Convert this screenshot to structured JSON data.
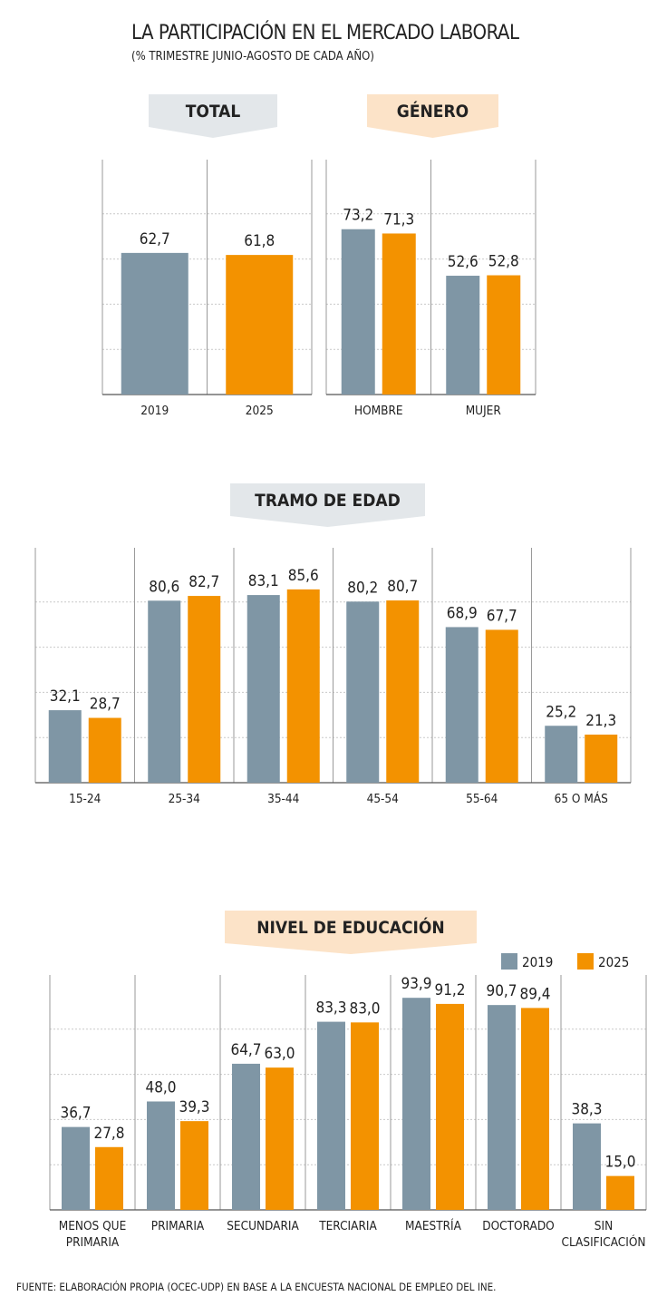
{
  "title": "LA PARTICIPACIÓN EN EL MERCADO LABORAL",
  "subtitle": "(% TRIMESTRE JUNIO-AGOSTO DE CADA AÑO)",
  "source": "FUENTE: ELABORACIÓN PROPIA (OCEC-UDP) EN BASE A LA ENCUESTA NACIONAL DE EMPLEO DEL INE.",
  "colors": {
    "series_2019": "#7f96a5",
    "series_2025": "#f39200",
    "banner_gray": "#e3e7ea",
    "banner_orange": "#fce3c8"
  },
  "legend": {
    "placement": "top-right",
    "items": [
      "2019",
      "2025"
    ]
  },
  "chart_data": [
    {
      "type": "bar",
      "banner": "TOTAL",
      "title": "TOTAL",
      "categories": [
        "2019",
        "2025"
      ],
      "series": [
        {
          "values": [
            62.7,
            61.8
          ],
          "labels": [
            "62,7",
            "61,8"
          ]
        }
      ],
      "ylim": [
        0,
        100
      ],
      "grid": true
    },
    {
      "type": "bar",
      "banner": "GÉNERO",
      "title": "GÉNERO",
      "categories": [
        "HOMBRE",
        "MUJER"
      ],
      "series": [
        {
          "name": "2019",
          "values": [
            73.2,
            52.6
          ],
          "labels": [
            "73,2",
            "52,6"
          ]
        },
        {
          "name": "2025",
          "values": [
            71.3,
            52.8
          ],
          "labels": [
            "71,3",
            "52,8"
          ]
        }
      ],
      "ylim": [
        0,
        100
      ],
      "grid": true
    },
    {
      "type": "bar",
      "banner": "TRAMO DE EDAD",
      "title": "TRAMO DE EDAD",
      "categories": [
        "15-24",
        "25-34",
        "35-44",
        "45-54",
        "55-64",
        "65 O MÁS"
      ],
      "series": [
        {
          "name": "2019",
          "values": [
            32.1,
            80.6,
            83.1,
            80.2,
            68.9,
            25.2
          ],
          "labels": [
            "32,1",
            "80,6",
            "83,1",
            "80,2",
            "68,9",
            "25,2"
          ]
        },
        {
          "name": "2025",
          "values": [
            28.7,
            82.7,
            85.6,
            80.7,
            67.7,
            21.3
          ],
          "labels": [
            "28,7",
            "82,7",
            "85,6",
            "80,7",
            "67,7",
            "21,3"
          ]
        }
      ],
      "ylim": [
        0,
        100
      ],
      "grid": true
    },
    {
      "type": "bar",
      "banner": "NIVEL DE EDUCACIÓN",
      "title": "NIVEL DE EDUCACIÓN",
      "categories": [
        [
          "MENOS QUE",
          "PRIMARIA"
        ],
        [
          "PRIMARIA"
        ],
        [
          "SECUNDARIA"
        ],
        [
          "TERCIARIA"
        ],
        [
          "MAESTRÍA"
        ],
        [
          "DOCTORADO"
        ],
        [
          "SIN",
          "CLASIFICACIÓN"
        ]
      ],
      "series": [
        {
          "name": "2019",
          "values": [
            36.7,
            48.0,
            64.7,
            83.3,
            93.9,
            90.7,
            38.3
          ],
          "labels": [
            "36,7",
            "48,0",
            "64,7",
            "83,3",
            "93,9",
            "90,7",
            "38,3"
          ]
        },
        {
          "name": "2025",
          "values": [
            27.8,
            39.3,
            63.0,
            83.0,
            91.2,
            89.4,
            15.0
          ],
          "labels": [
            "27,8",
            "39,3",
            "63,0",
            "83,0",
            "91,2",
            "89,4",
            "15,0"
          ]
        }
      ],
      "ylim": [
        0,
        100
      ],
      "grid": true
    }
  ]
}
